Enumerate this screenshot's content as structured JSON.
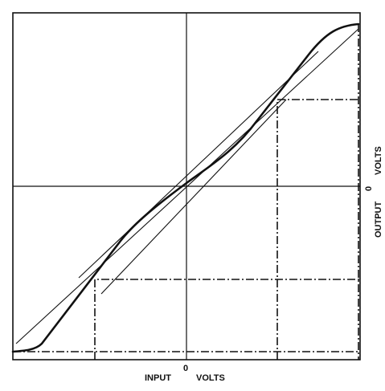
{
  "labels": {
    "x_zero": "0",
    "x_input": "INPUT",
    "x_volts": "VOLTS",
    "y_output": "OUTPUT",
    "y_zero": "0",
    "y_volts": "VOLTS"
  }
}
